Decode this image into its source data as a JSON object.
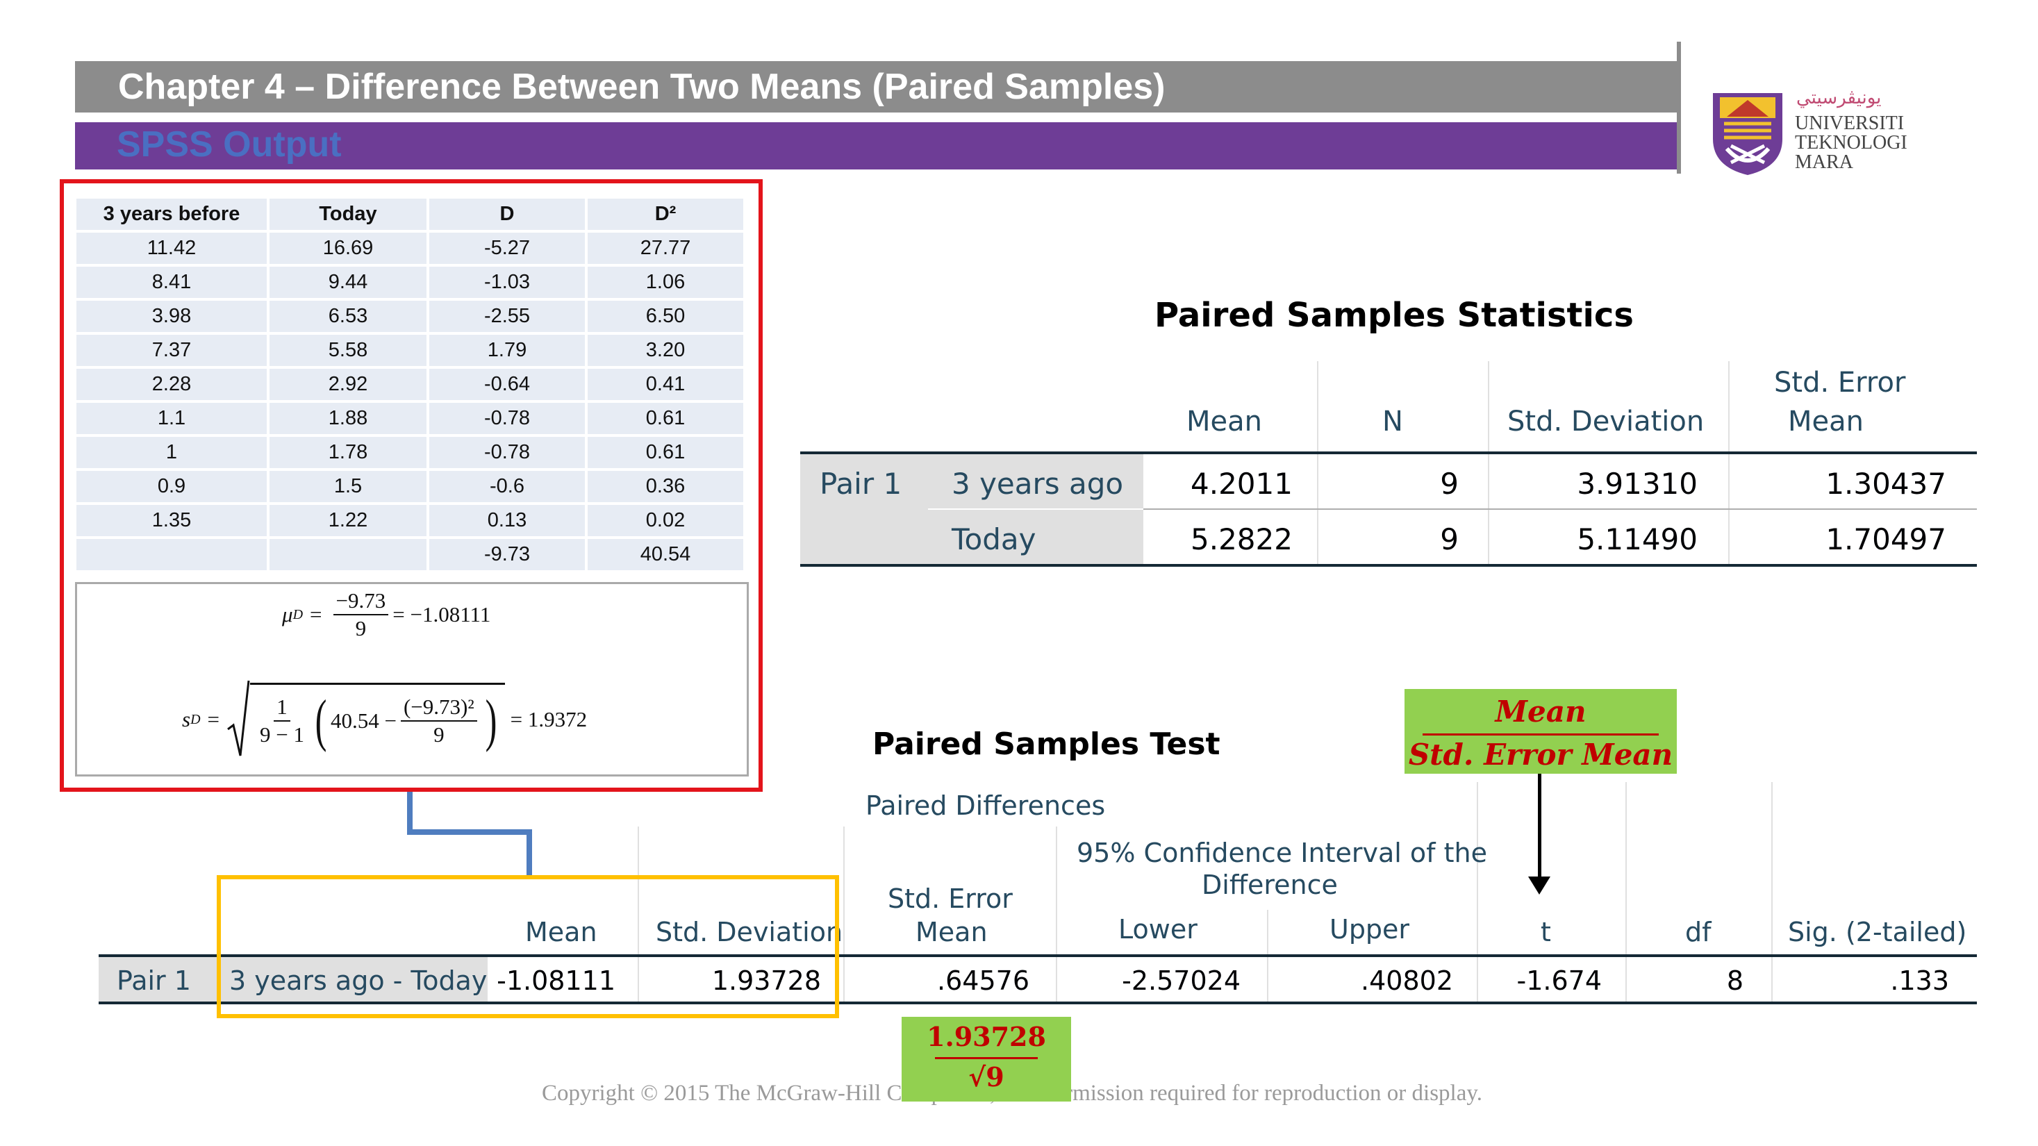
{
  "header": {
    "title": "Chapter 4 – Difference Between Two Means (Paired Samples)",
    "subtitle": "SPSS Output"
  },
  "logo": {
    "script": "ﻳﻮﻧﻴﭭﺮﺳﻴﺘﻲ",
    "line1": "UNIVERSITI",
    "line2": "TEKNOLOGI",
    "line3": "MARA"
  },
  "data_table": {
    "headers": [
      "3 years before",
      "Today",
      "D",
      "D²"
    ],
    "rows": [
      [
        "11.42",
        "16.69",
        "-5.27",
        "27.77"
      ],
      [
        "8.41",
        "9.44",
        "-1.03",
        "1.06"
      ],
      [
        "3.98",
        "6.53",
        "-2.55",
        "6.50"
      ],
      [
        "7.37",
        "5.58",
        "1.79",
        "3.20"
      ],
      [
        "2.28",
        "2.92",
        "-0.64",
        "0.41"
      ],
      [
        "1.1",
        "1.88",
        "-0.78",
        "0.61"
      ],
      [
        "1",
        "1.78",
        "-0.78",
        "0.61"
      ],
      [
        "0.9",
        "1.5",
        "-0.6",
        "0.36"
      ],
      [
        "1.35",
        "1.22",
        "0.13",
        "0.02"
      ],
      [
        "",
        "",
        "-9.73",
        "40.54"
      ]
    ]
  },
  "formulas": {
    "mu_symbol": "μ",
    "mu_sub": "D",
    "mu_eq": "=",
    "mu_num": "−9.73",
    "mu_den": "9",
    "mu_result": "= −1.08111",
    "s_symbol": "s",
    "s_sub": "D",
    "s_eq": "=",
    "s_one": "1",
    "s_den": "9 − 1",
    "s_inner_a": "40.54 −",
    "s_inner_num": "(−9.73)²",
    "s_inner_den": "9",
    "s_result": "= 1.9372"
  },
  "stats_table": {
    "title": "Paired Samples Statistics",
    "headers": {
      "mean": "Mean",
      "n": "N",
      "sd": "Std. Deviation",
      "se_1": "Std. Error",
      "se_2": "Mean"
    },
    "pair_label": "Pair 1",
    "rows": [
      {
        "label": "3 years ago",
        "mean": "4.2011",
        "n": "9",
        "sd": "3.91310",
        "se": "1.30437"
      },
      {
        "label": "Today",
        "mean": "5.2822",
        "n": "9",
        "sd": "5.11490",
        "se": "1.70497"
      }
    ]
  },
  "test_table": {
    "title": "Paired Samples Test",
    "group_header": "Paired Differences",
    "ci_header_1": "95% Confidence Interval of the",
    "ci_header_2": "Difference",
    "headers": {
      "mean": "Mean",
      "sd": "Std. Deviation",
      "se_1": "Std. Error",
      "se_2": "Mean",
      "lower": "Lower",
      "upper": "Upper",
      "t": "t",
      "df": "df",
      "sig": "Sig. (2-tailed)"
    },
    "row": {
      "pair": "Pair 1",
      "label": "3 years ago - Today",
      "mean": "-1.08111",
      "sd": "1.93728",
      "se": ".64576",
      "lower": "-2.57024",
      "upper": ".40802",
      "t": "-1.674",
      "df": "8",
      "sig": ".133"
    }
  },
  "callouts": {
    "t_num": "Mean",
    "t_den": "Std. Error Mean",
    "se_num": "1.93728",
    "se_den": "√9"
  },
  "colors": {
    "title_bar": "#8c8c8c",
    "subtitle_bar": "#6e3d96",
    "red_box": "#e3141b",
    "orange_box": "#ffc000",
    "green_callout": "#92d050",
    "connector": "#4f7dbf"
  },
  "footer": {
    "copyright": "Copyright © 2015 The McGraw-Hill Companies, Inc.  Permission required for reproduction or display."
  }
}
